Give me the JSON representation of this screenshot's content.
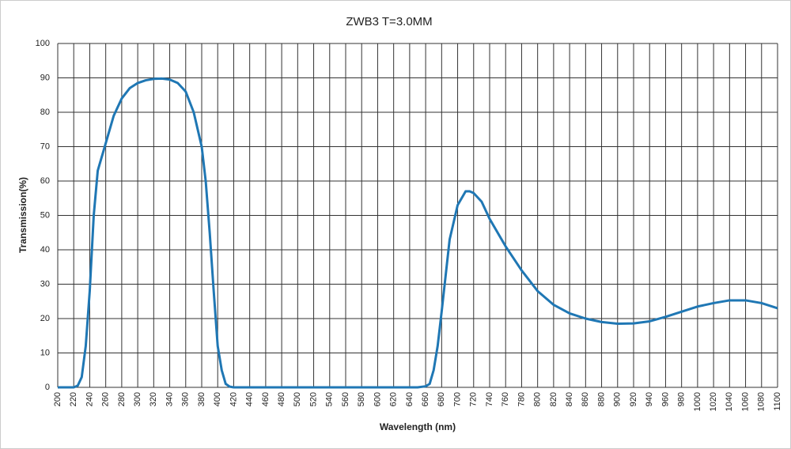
{
  "chart_data": {
    "type": "line",
    "title": "ZWB3 T=3.0MM",
    "x_label": "Wavelength (nm)",
    "y_label": "Transmission(%)",
    "x": [
      200,
      220,
      225,
      230,
      235,
      240,
      245,
      250,
      260,
      270,
      280,
      290,
      300,
      310,
      320,
      330,
      340,
      350,
      360,
      370,
      380,
      385,
      390,
      395,
      400,
      405,
      410,
      415,
      420,
      650,
      660,
      665,
      670,
      675,
      680,
      690,
      700,
      710,
      715,
      720,
      730,
      740,
      760,
      780,
      800,
      820,
      840,
      860,
      880,
      900,
      920,
      940,
      960,
      980,
      1000,
      1020,
      1040,
      1060,
      1080,
      1100
    ],
    "series": [
      {
        "name": "ZWB3 T=3.0MM",
        "color": "#1f77b4",
        "values": [
          0,
          0,
          0.5,
          3,
          12,
          28,
          50,
          63,
          71,
          79,
          84,
          87,
          88.5,
          89.3,
          89.7,
          89.8,
          89.5,
          88.5,
          86,
          80,
          70,
          60,
          45,
          28,
          12,
          5,
          1,
          0.2,
          0,
          0,
          0.3,
          1,
          5,
          12,
          22,
          43,
          53,
          57,
          57,
          56.5,
          54,
          49,
          41,
          34,
          28,
          24,
          21.5,
          20,
          19,
          18.5,
          18.6,
          19.2,
          20.5,
          22,
          23.5,
          24.5,
          25.3,
          25.3,
          24.5,
          23
        ]
      }
    ],
    "xlim": [
      200,
      1100
    ],
    "xticks": [
      200,
      220,
      240,
      260,
      280,
      300,
      320,
      340,
      360,
      380,
      400,
      420,
      440,
      460,
      480,
      500,
      520,
      540,
      560,
      580,
      600,
      620,
      640,
      660,
      680,
      700,
      720,
      740,
      760,
      780,
      800,
      820,
      840,
      860,
      880,
      900,
      920,
      940,
      960,
      980,
      1000,
      1020,
      1040,
      1060,
      1080,
      1100
    ],
    "ylim": [
      0,
      100
    ],
    "yticks": [
      0,
      10,
      20,
      30,
      40,
      50,
      60,
      70,
      80,
      90,
      100
    ],
    "grid": true
  }
}
